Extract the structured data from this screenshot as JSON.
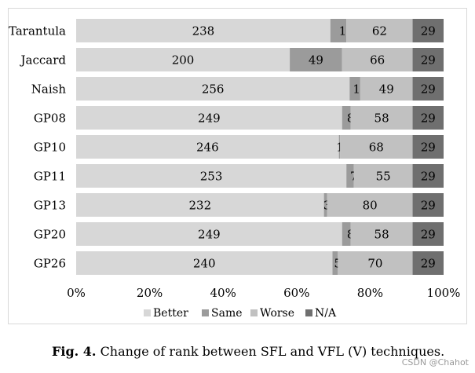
{
  "chart_data": {
    "type": "bar",
    "orientation": "horizontal",
    "stacked": "percent",
    "title": "",
    "xlabel": "",
    "ylabel": "",
    "xlim": [
      0,
      100
    ],
    "x_ticks": [
      "0%",
      "20%",
      "40%",
      "60%",
      "80%",
      "100%"
    ],
    "categories": [
      "Tarantula",
      "Jaccard",
      "Naish",
      "GP08",
      "GP10",
      "GP11",
      "GP13",
      "GP20",
      "GP26"
    ],
    "series": [
      {
        "name": "Better",
        "color": "#d7d7d7",
        "values": [
          238,
          200,
          256,
          249,
          246,
          253,
          232,
          249,
          240
        ]
      },
      {
        "name": "Same",
        "color": "#9b9b9b",
        "values": [
          15,
          49,
          10,
          8,
          1,
          7,
          3,
          8,
          5
        ]
      },
      {
        "name": "Worse",
        "color": "#c1c1c1",
        "values": [
          62,
          66,
          49,
          58,
          68,
          55,
          80,
          58,
          70
        ]
      },
      {
        "name": "N/A",
        "color": "#6f6f6f",
        "values": [
          29,
          29,
          29,
          29,
          29,
          29,
          29,
          29,
          29
        ]
      }
    ],
    "legend_position": "bottom",
    "grid": false
  },
  "caption": {
    "label": "Fig. 4.",
    "text": "Change of rank between SFL and VFL (V) techniques."
  },
  "watermark": "CSDN @Chahot"
}
